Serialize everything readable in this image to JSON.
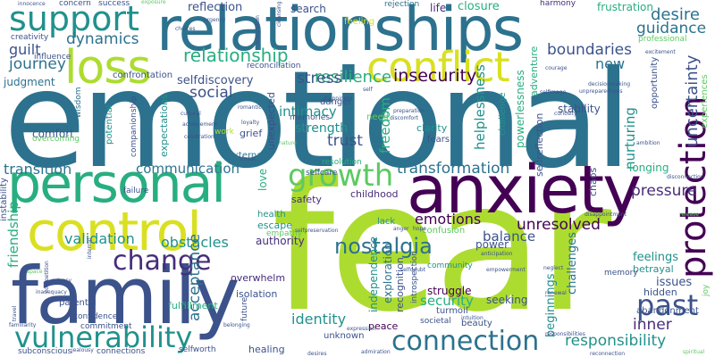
{
  "words": [
    {
      "text": "emotional",
      "color": "#2c728e"
    },
    {
      "text": "fear",
      "color": "#addc30"
    },
    {
      "text": "relationships",
      "color": "#2c728e"
    },
    {
      "text": "anxiety",
      "color": "#440154"
    },
    {
      "text": "family",
      "color": "#3b528b"
    },
    {
      "text": "personal",
      "color": "#28ae80"
    },
    {
      "text": "control",
      "color": "#d9e021"
    },
    {
      "text": "conflict",
      "color": "#d9e021"
    },
    {
      "text": "loss",
      "color": "#addc30"
    },
    {
      "text": "support",
      "color": "#21918c"
    },
    {
      "text": "vulnerability",
      "color": "#21918c"
    },
    {
      "text": "connection",
      "color": "#2c728e"
    },
    {
      "text": "growth",
      "color": "#5ec962"
    },
    {
      "text": "change",
      "color": "#472d7b"
    },
    {
      "text": "past",
      "color": "#3b528b"
    },
    {
      "text": "protection",
      "color": "#440154"
    },
    {
      "text": "nostalgia",
      "color": "#2c728e"
    },
    {
      "text": "relationship",
      "color": "#28ae80"
    },
    {
      "text": "resilience",
      "color": "#28ae80"
    },
    {
      "text": "dynamics",
      "color": "#2c728e"
    },
    {
      "text": "journey",
      "color": "#2c728e"
    },
    {
      "text": "guilt",
      "color": "#3b528b"
    },
    {
      "text": "social",
      "color": "#3b528b"
    },
    {
      "text": "stress",
      "color": "#3b528b"
    },
    {
      "text": "insecurity",
      "color": "#440154"
    },
    {
      "text": "desire",
      "color": "#2c728e"
    },
    {
      "text": "guidance",
      "color": "#2c728e"
    },
    {
      "text": "boundaries",
      "color": "#3b528b"
    },
    {
      "text": "new",
      "color": "#2c728e"
    },
    {
      "text": "uncertainty",
      "color": "#3b528b"
    },
    {
      "text": "transformation",
      "color": "#2c728e"
    },
    {
      "text": "transition",
      "color": "#2c728e"
    },
    {
      "text": "communication",
      "color": "#2c728e"
    },
    {
      "text": "validation",
      "color": "#21918c"
    },
    {
      "text": "obstacles",
      "color": "#21918c"
    },
    {
      "text": "emotions",
      "color": "#440154"
    },
    {
      "text": "balance",
      "color": "#3b528b"
    },
    {
      "text": "pressure",
      "color": "#472d7b"
    },
    {
      "text": "acceptance",
      "color": "#2c728e"
    },
    {
      "text": "identity",
      "color": "#21918c"
    },
    {
      "text": "security",
      "color": "#28ae80"
    },
    {
      "text": "responsibility",
      "color": "#21918c"
    },
    {
      "text": "inner",
      "color": "#472d7b"
    },
    {
      "text": "unresolved",
      "color": "#440154"
    },
    {
      "text": "trust",
      "color": "#3b528b"
    },
    {
      "text": "intimacy",
      "color": "#21918c"
    },
    {
      "text": "strength",
      "color": "#21918c"
    },
    {
      "text": "freedom",
      "color": "#28ae80"
    },
    {
      "text": "friendship",
      "color": "#28ae80"
    },
    {
      "text": "reflection",
      "color": "#3b528b"
    },
    {
      "text": "search",
      "color": "#3b528b"
    },
    {
      "text": "life",
      "color": "#472d7b"
    },
    {
      "text": "closure",
      "color": "#28ae80"
    },
    {
      "text": "frustration",
      "color": "#28ae80"
    },
    {
      "text": "harmony",
      "color": "#472d7b"
    },
    {
      "text": "success",
      "color": "#3b528b"
    },
    {
      "text": "feeling",
      "color": "#d9e021"
    },
    {
      "text": "rejection",
      "color": "#2c728e"
    },
    {
      "text": "creativity",
      "color": "#3b528b"
    },
    {
      "text": "influence",
      "color": "#3b528b"
    },
    {
      "text": "judgment",
      "color": "#2c728e"
    },
    {
      "text": "confrontation",
      "color": "#3b528b"
    },
    {
      "text": "selfdiscovery",
      "color": "#3b528b"
    },
    {
      "text": "reconciliation",
      "color": "#3b528b"
    },
    {
      "text": "adventure",
      "color": "#28ae80"
    },
    {
      "text": "comfort",
      "color": "#3b528b"
    },
    {
      "text": "overcoming",
      "color": "#5ec962"
    },
    {
      "text": "wisdom",
      "color": "#2c728e"
    },
    {
      "text": "potential",
      "color": "#21918c"
    },
    {
      "text": "expectations",
      "color": "#21918c"
    },
    {
      "text": "companionship",
      "color": "#3b528b"
    },
    {
      "text": "work",
      "color": "#addc30"
    },
    {
      "text": "grief",
      "color": "#3b528b"
    },
    {
      "text": "unexpected",
      "color": "#3b528b"
    },
    {
      "text": "memories",
      "color": "#3b528b"
    },
    {
      "text": "danger",
      "color": "#3b528b"
    },
    {
      "text": "need",
      "color": "#5ec962"
    },
    {
      "text": "clarity",
      "color": "#21918c"
    },
    {
      "text": "fears",
      "color": "#3b528b"
    },
    {
      "text": "helplessness",
      "color": "#21918c"
    },
    {
      "text": "challenge",
      "color": "#21918c"
    },
    {
      "text": "powerlessness",
      "color": "#28ae80"
    },
    {
      "text": "stability",
      "color": "#3b528b"
    },
    {
      "text": "nurturing",
      "color": "#21918c"
    },
    {
      "text": "longing",
      "color": "#28ae80"
    },
    {
      "text": "opportunity",
      "color": "#3b528b"
    },
    {
      "text": "experiences",
      "color": "#5ec962"
    },
    {
      "text": "professional",
      "color": "#5ec962"
    },
    {
      "text": "failure",
      "color": "#3b528b"
    },
    {
      "text": "love",
      "color": "#28ae80"
    },
    {
      "text": "external",
      "color": "#2c728e"
    },
    {
      "text": "resolution",
      "color": "#28ae80"
    },
    {
      "text": "selfcare",
      "color": "#3b528b"
    },
    {
      "text": "childhood",
      "color": "#472d7b"
    },
    {
      "text": "safety",
      "color": "#472d7b"
    },
    {
      "text": "selfreflection",
      "color": "#3b528b"
    },
    {
      "text": "lack",
      "color": "#21918c"
    },
    {
      "text": "escape",
      "color": "#21918c"
    },
    {
      "text": "health",
      "color": "#21918c"
    },
    {
      "text": "confusion",
      "color": "#5ec962"
    },
    {
      "text": "chaos",
      "color": "#3b528b"
    },
    {
      "text": "empathy",
      "color": "#5ec962"
    },
    {
      "text": "authority",
      "color": "#472d7b"
    },
    {
      "text": "independence",
      "color": "#21918c"
    },
    {
      "text": "exploration",
      "color": "#2c728e"
    },
    {
      "text": "recognition",
      "color": "#3b528b"
    },
    {
      "text": "introspection",
      "color": "#3b528b"
    },
    {
      "text": "community",
      "color": "#21918c"
    },
    {
      "text": "power",
      "color": "#3b528b"
    },
    {
      "text": "struggle",
      "color": "#440154"
    },
    {
      "text": "seeking",
      "color": "#3b528b"
    },
    {
      "text": "turmoil",
      "color": "#3b528b"
    },
    {
      "text": "beauty",
      "color": "#3b528b"
    },
    {
      "text": "peace",
      "color": "#440154"
    },
    {
      "text": "unknown",
      "color": "#3b528b"
    },
    {
      "text": "feelings",
      "color": "#21918c"
    },
    {
      "text": "betrayal",
      "color": "#21918c"
    },
    {
      "text": "issues",
      "color": "#3b528b"
    },
    {
      "text": "hidden",
      "color": "#3b528b"
    },
    {
      "text": "beginnings",
      "color": "#21918c"
    },
    {
      "text": "challenges",
      "color": "#2c728e"
    },
    {
      "text": "overwhelm",
      "color": "#472d7b"
    },
    {
      "text": "isolation",
      "color": "#3b528b"
    },
    {
      "text": "fulfillment",
      "color": "#28ae80"
    },
    {
      "text": "parental",
      "color": "#3b528b"
    },
    {
      "text": "confidence",
      "color": "#3b528b"
    },
    {
      "text": "commitment",
      "color": "#3b528b"
    },
    {
      "text": "subconscious",
      "color": "#3b528b"
    },
    {
      "text": "connections",
      "color": "#3b528b"
    },
    {
      "text": "selfworth",
      "color": "#3b528b"
    },
    {
      "text": "healing",
      "color": "#3b528b"
    },
    {
      "text": "abandonment",
      "color": "#3b528b"
    },
    {
      "text": "memory",
      "color": "#3b528b"
    },
    {
      "text": "joy",
      "color": "#5ec962"
    },
    {
      "text": "societal",
      "color": "#3b528b"
    },
    {
      "text": "future",
      "color": "#3b528b"
    },
    {
      "text": "instability",
      "color": "#3b528b"
    },
    {
      "text": "concern",
      "color": "#3b528b"
    },
    {
      "text": "exposure",
      "color": "#5ec962"
    },
    {
      "text": "urgency",
      "color": "#3b528b"
    },
    {
      "text": "choices",
      "color": "#3b528b"
    },
    {
      "text": "romantic",
      "color": "#3b528b"
    },
    {
      "text": "loyalty",
      "color": "#3b528b"
    },
    {
      "text": "cultural",
      "color": "#3b528b"
    },
    {
      "text": "achievement",
      "color": "#3b528b"
    },
    {
      "text": "celebration",
      "color": "#3b528b"
    },
    {
      "text": "self",
      "color": "#3b528b"
    },
    {
      "text": "courage",
      "color": "#3b528b"
    },
    {
      "text": "selfimage",
      "color": "#3b528b"
    },
    {
      "text": "curiosity",
      "color": "#3b528b"
    },
    {
      "text": "excitement",
      "color": "#3b528b"
    },
    {
      "text": "inadequacy",
      "color": "#3b528b"
    },
    {
      "text": "competition",
      "color": "#3b528b"
    },
    {
      "text": "familiarity",
      "color": "#3b528b"
    },
    {
      "text": "travel",
      "color": "#3b528b"
    },
    {
      "text": "jealousy",
      "color": "#3b528b"
    },
    {
      "text": "intuition",
      "color": "#3b528b"
    },
    {
      "text": "expression",
      "color": "#3b528b"
    },
    {
      "text": "selfdoubt",
      "color": "#3b528b"
    },
    {
      "text": "empowerment",
      "color": "#3b528b"
    },
    {
      "text": "anticipation",
      "color": "#3b528b"
    },
    {
      "text": "responsibilities",
      "color": "#3b528b"
    },
    {
      "text": "reconnection",
      "color": "#3b528b"
    },
    {
      "text": "spiritual",
      "color": "#5ec962"
    },
    {
      "text": "admiration",
      "color": "#3b528b"
    },
    {
      "text": "desires",
      "color": "#3b528b"
    },
    {
      "text": "belonging",
      "color": "#3b528b"
    },
    {
      "text": "neglect",
      "color": "#3b528b"
    },
    {
      "text": "renewal",
      "color": "#3b528b"
    },
    {
      "text": "anger",
      "color": "#3b528b"
    },
    {
      "text": "hope",
      "color": "#3b528b"
    },
    {
      "text": "disappointment",
      "color": "#3b528b"
    },
    {
      "text": "privacy",
      "color": "#3b528b"
    },
    {
      "text": "space",
      "color": "#5ec962"
    },
    {
      "text": "innocence",
      "color": "#3b528b"
    },
    {
      "text": "integration",
      "color": "#3b528b"
    },
    {
      "text": "cleansing",
      "color": "#3b528b"
    },
    {
      "text": "happiness",
      "color": "#3b528b"
    },
    {
      "text": "preparation",
      "color": "#3b528b"
    },
    {
      "text": "discomfort",
      "color": "#3b528b"
    },
    {
      "text": "threat",
      "color": "#3b528b"
    },
    {
      "text": "unpreparedness",
      "color": "#3b528b"
    },
    {
      "text": "decisionmaking",
      "color": "#3b528b"
    },
    {
      "text": "ambition",
      "color": "#3b528b"
    },
    {
      "text": "disconnection",
      "color": "#3b528b"
    },
    {
      "text": "release",
      "color": "#5ec962"
    },
    {
      "text": "internal",
      "color": "#3b528b"
    },
    {
      "text": "nature",
      "color": "#5ec962"
    },
    {
      "text": "selfpreservation",
      "color": "#3b528b"
    }
  ]
}
